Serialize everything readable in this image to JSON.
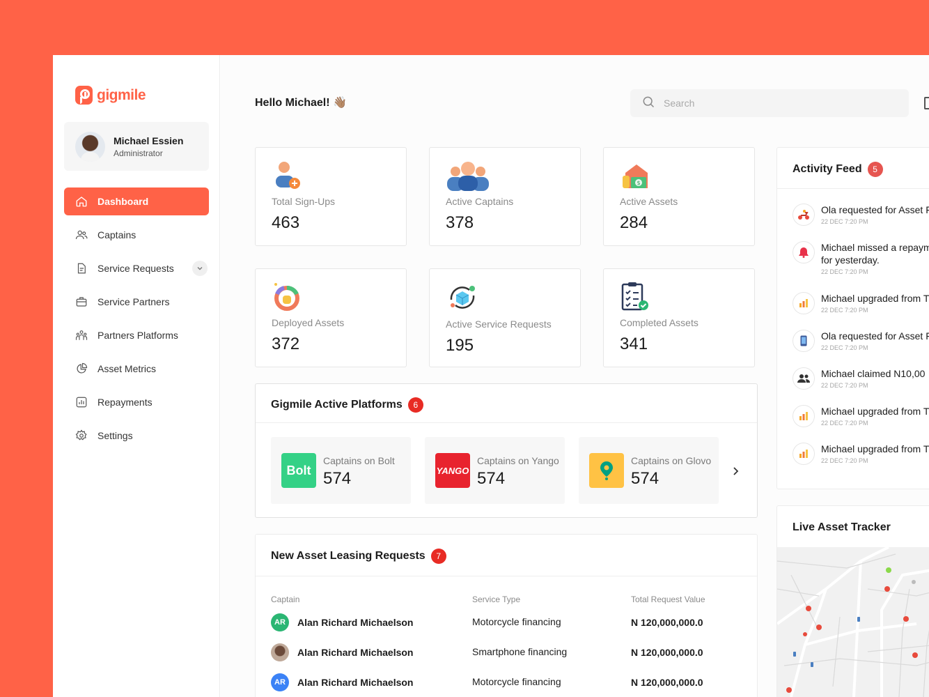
{
  "brand": {
    "name": "gigmile",
    "accent": "#FF6247"
  },
  "user": {
    "name": "Michael Essien",
    "role": "Administrator"
  },
  "nav": [
    {
      "label": "Dashboard",
      "icon": "home-icon",
      "active": true
    },
    {
      "label": "Captains",
      "icon": "users-icon"
    },
    {
      "label": "Service Requests",
      "icon": "document-icon",
      "expandable": true
    },
    {
      "label": "Service Partners",
      "icon": "briefcase-icon"
    },
    {
      "label": "Partners Platforms",
      "icon": "group-icon"
    },
    {
      "label": "Asset Metrics",
      "icon": "pie-chart-icon"
    },
    {
      "label": "Repayments",
      "icon": "bar-chart-icon"
    },
    {
      "label": "Settings",
      "icon": "gear-icon"
    }
  ],
  "header": {
    "greeting": "Hello Michael! 👋🏽",
    "search_placeholder": "Search"
  },
  "stats": [
    {
      "label": "Total Sign-Ups",
      "value": "463",
      "icon": "user-add-icon"
    },
    {
      "label": "Active Captains",
      "value": "378",
      "icon": "people-icon"
    },
    {
      "label": "Active Assets",
      "value": "284",
      "icon": "house-money-icon"
    },
    {
      "label": "Deployed Assets",
      "value": "372",
      "icon": "donut-money-icon"
    },
    {
      "label": "Active Service Requests",
      "value": "195",
      "icon": "cube-cycle-icon"
    },
    {
      "label": "Completed Assets",
      "value": "341",
      "icon": "checklist-icon"
    }
  ],
  "platforms": {
    "title": "Gigmile Active Platforms",
    "count": "6",
    "items": [
      {
        "label": "Captains on Bolt",
        "value": "574",
        "logo_text": "Bolt",
        "color": "#34D186"
      },
      {
        "label": "Captains on Yango",
        "value": "574",
        "logo_text": "YANGO",
        "color": "#E8232E"
      },
      {
        "label": "Captains on Glovo",
        "value": "574",
        "logo_text": "",
        "color": "#FFC244"
      }
    ]
  },
  "requests": {
    "title": "New Asset Leasing Requests",
    "count": "7",
    "columns": [
      "Captain",
      "Service Type",
      "Total Request Value"
    ],
    "rows": [
      {
        "initials": "AR",
        "name": "Alan Richard Michaelson",
        "type": "Motorcycle financing",
        "value": "N 120,000,000.0",
        "color": "#2BB673"
      },
      {
        "initials": "",
        "name": "Alan Richard Michaelson",
        "type": "Smartphone financing",
        "value": "N 120,000,000.0",
        "color": "#7a6a60"
      },
      {
        "initials": "AR",
        "name": "Alan Richard Michaelson",
        "type": "Motorcycle financing",
        "value": "N 120,000,000.0",
        "color": "#3B82F6"
      }
    ]
  },
  "activity": {
    "title": "Activity Feed",
    "count": "5",
    "items": [
      {
        "text": "Ola requested for Asset F",
        "time": "22 DEC 7:20 PM",
        "icon": "motorbike-icon"
      },
      {
        "text": "Michael missed a repaym",
        "text2": "for yesterday.",
        "time": "22 DEC 7:20 PM",
        "icon": "bell-icon"
      },
      {
        "text": "Michael upgraded from T",
        "time": "22 DEC 7:20 PM",
        "icon": "bars-icon"
      },
      {
        "text": "Ola requested for Asset F",
        "time": "22 DEC 7:20 PM",
        "icon": "phone-icon"
      },
      {
        "text": "Michael claimed  N10,00",
        "time": "22 DEC 7:20 PM",
        "icon": "people-icon"
      },
      {
        "text": "Michael upgraded from T",
        "time": "22 DEC 7:20 PM",
        "icon": "bars-icon"
      },
      {
        "text": "Michael upgraded from T",
        "time": "22 DEC 7:20 PM",
        "icon": "bars-icon"
      }
    ]
  },
  "tracker": {
    "title": "Live Asset Tracker"
  }
}
